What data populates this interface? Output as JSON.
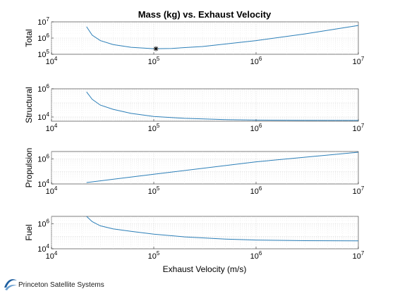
{
  "figure": {
    "title": "Mass (kg) vs. Exhaust Velocity",
    "xlabel": "Exhaust Velocity (m/s)",
    "line_color": "#2c7fb8"
  },
  "logo": {
    "text": "Princeton Satellite Systems",
    "color": "#1f5fa0"
  },
  "chart_data": [
    {
      "type": "line",
      "ylabel": "Total",
      "x_scale": "log",
      "y_scale": "log",
      "xlim": [
        10000,
        10000000
      ],
      "ylim": [
        100000,
        10000000
      ],
      "xticks": [
        10000,
        100000,
        1000000,
        10000000
      ],
      "yticks": [
        100000,
        1000000,
        10000000
      ],
      "grid": true,
      "series": [
        {
          "x": [
            22000,
            25000,
            30000,
            40000,
            60000,
            100000,
            150000,
            300000,
            1000000,
            3000000,
            10000000
          ],
          "y": [
            5000000,
            1500000,
            700000,
            400000,
            270000,
            220000,
            230000,
            300000,
            700000,
            1800000,
            6000000
          ]
        }
      ],
      "marker": {
        "x": 105000,
        "y": 220000,
        "symbol": "*"
      }
    },
    {
      "type": "line",
      "ylabel": "Structural",
      "x_scale": "log",
      "y_scale": "log",
      "xlim": [
        10000,
        10000000
      ],
      "ylim": [
        5000,
        1000000
      ],
      "xticks": [
        10000,
        100000,
        1000000,
        10000000
      ],
      "yticks": [
        10000,
        1000000
      ],
      "grid": true,
      "series": [
        {
          "x": [
            22000,
            25000,
            30000,
            40000,
            60000,
            100000,
            200000,
            500000,
            1000000,
            3000000,
            10000000
          ],
          "y": [
            600000,
            180000,
            70000,
            35000,
            18000,
            11000,
            8000,
            6500,
            6000,
            5800,
            5700
          ]
        }
      ]
    },
    {
      "type": "line",
      "ylabel": "Propulsion",
      "x_scale": "log",
      "y_scale": "log",
      "xlim": [
        10000,
        10000000
      ],
      "ylim": [
        10000,
        4000000
      ],
      "xticks": [
        10000,
        100000,
        1000000,
        10000000
      ],
      "yticks": [
        10000,
        1000000
      ],
      "grid": true,
      "series": [
        {
          "x": [
            22000,
            100000,
            1000000,
            10000000
          ],
          "y": [
            13000,
            60000,
            600000,
            3500000
          ]
        }
      ]
    },
    {
      "type": "line",
      "ylabel": "Fuel",
      "x_scale": "log",
      "y_scale": "log",
      "xlim": [
        10000,
        10000000
      ],
      "ylim": [
        10000,
        4000000
      ],
      "xticks": [
        10000,
        100000,
        1000000,
        10000000
      ],
      "yticks": [
        10000,
        1000000
      ],
      "grid": true,
      "series": [
        {
          "x": [
            22000,
            25000,
            30000,
            40000,
            60000,
            100000,
            200000,
            500000,
            1000000,
            3000000,
            10000000
          ],
          "y": [
            4000000,
            1500000,
            700000,
            400000,
            250000,
            150000,
            90000,
            60000,
            50000,
            45000,
            43000
          ]
        }
      ]
    }
  ]
}
